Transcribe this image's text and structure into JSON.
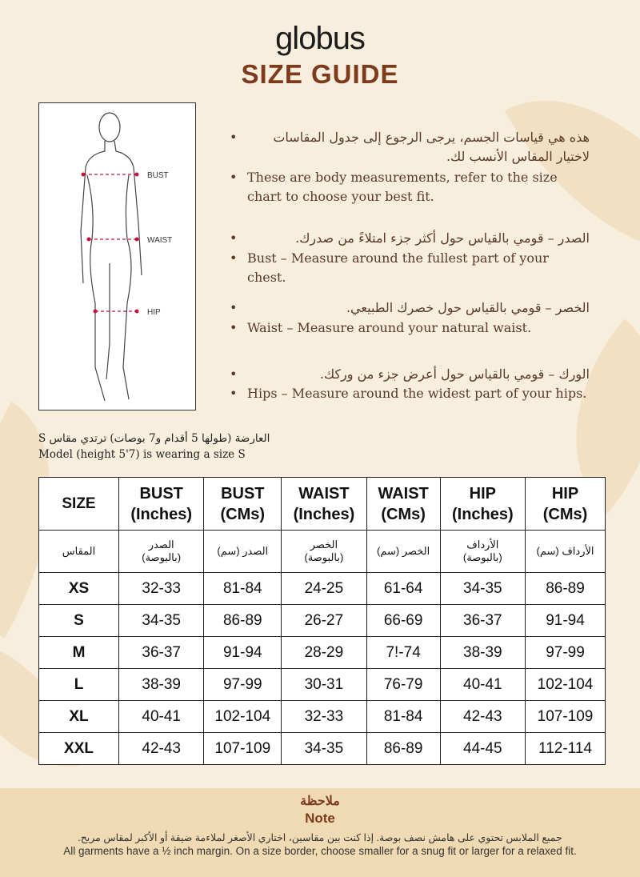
{
  "brand": "globus",
  "title": "SIZE GUIDE",
  "figure": {
    "labels": [
      "BUST",
      "WAIST",
      "HIP"
    ]
  },
  "bullets": [
    {
      "ar": "هذه هي قياسات الجسم، يرجى الرجوع إلى جدول المقاسات لاختيار المقاس الأنسب لك.",
      "en": "These are body measurements, refer to the size chart to choose your best fit."
    },
    {
      "ar": "الصدر – قومي بالقياس حول أكثر جزء امتلاءً من صدرك.",
      "en": "Bust – Measure around the fullest part of your chest."
    },
    {
      "ar": "الخصر – قومي بالقياس حول خصرك الطبيعي.",
      "en": "Waist – Measure around your natural waist."
    },
    {
      "ar": "الورك – قومي بالقياس حول أعرض جزء من وركك.",
      "en": "Hips – Measure around the widest part of your hips."
    }
  ],
  "model": {
    "ar": "العارضة (طولها 5 أقدام و7 بوصات) ترتدي مقاس S",
    "en": "Model (height 5'7) is wearing a size S"
  },
  "table": {
    "headers": [
      [
        "SIZE",
        ""
      ],
      [
        "BUST",
        "(Inches)"
      ],
      [
        "BUST",
        "(CMs)"
      ],
      [
        "WAIST",
        "(Inches)"
      ],
      [
        "WAIST",
        "(CMs)"
      ],
      [
        "HIP",
        "(Inches)"
      ],
      [
        "HIP",
        "(CMs)"
      ]
    ],
    "headers_ar": [
      [
        "المقاس",
        ""
      ],
      [
        "الصدر",
        "(بالبوصة)"
      ],
      [
        "الصدر (سم)",
        ""
      ],
      [
        "الخصر",
        "(بالبوصة)"
      ],
      [
        "الخصر (سم)",
        ""
      ],
      [
        "الأرداف",
        "(بالبوصة)"
      ],
      [
        "الأرداف (سم)",
        ""
      ]
    ],
    "rows": [
      [
        "XS",
        "32-33",
        "81-84",
        "24-25",
        "61-64",
        "34-35",
        "86-89"
      ],
      [
        "S",
        "34-35",
        "86-89",
        "26-27",
        "66-69",
        "36-37",
        "91-94"
      ],
      [
        "M",
        "36-37",
        "91-94",
        "28-29",
        "7!-74",
        "38-39",
        "97-99"
      ],
      [
        "L",
        "38-39",
        "97-99",
        "30-31",
        "76-79",
        "40-41",
        "102-104"
      ],
      [
        "XL",
        "40-41",
        "102-104",
        "32-33",
        "81-84",
        "42-43",
        "107-109"
      ],
      [
        "XXL",
        "42-43",
        "107-109",
        "34-35",
        "86-89",
        "44-45",
        "112-114"
      ]
    ]
  },
  "note": {
    "title_ar": "ملاحظة",
    "title_en": "Note",
    "text_ar": "جميع الملابس تحتوي على هامش نصف بوصة. إذا كنت بين مقاسين، اختاري الأصغر لملاءمة ضيقة أو الأكبر لمقاس مريح.",
    "text_en": "All garments have a ½ inch margin. On a size border, choose smaller for a snug fit or larger for a relaxed fit."
  },
  "colors": {
    "accent": "#7d3b1c",
    "background": "#f8eedd",
    "note_band": "#f0dab3"
  }
}
